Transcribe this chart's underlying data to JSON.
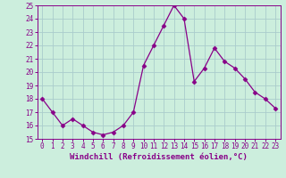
{
  "x": [
    0,
    1,
    2,
    3,
    4,
    5,
    6,
    7,
    8,
    9,
    10,
    11,
    12,
    13,
    14,
    15,
    16,
    17,
    18,
    19,
    20,
    21,
    22,
    23
  ],
  "y": [
    18,
    17,
    16,
    16.5,
    16,
    15.5,
    15.3,
    15.5,
    16,
    17,
    20.5,
    22,
    23.5,
    25,
    24,
    19.3,
    20.3,
    21.8,
    20.8,
    20.3,
    19.5,
    18.5,
    18,
    17.3
  ],
  "line_color": "#880088",
  "marker": "D",
  "marker_size": 2.5,
  "background_color": "#cceedd",
  "grid_color": "#bbdddd",
  "xlabel": "Windchill (Refroidissement éolien,°C)",
  "ylabel": "",
  "xlim": [
    -0.5,
    23.5
  ],
  "ylim": [
    15,
    25
  ],
  "yticks": [
    15,
    16,
    17,
    18,
    19,
    20,
    21,
    22,
    23,
    24,
    25
  ],
  "xticks": [
    0,
    1,
    2,
    3,
    4,
    5,
    6,
    7,
    8,
    9,
    10,
    11,
    12,
    13,
    14,
    15,
    16,
    17,
    18,
    19,
    20,
    21,
    22,
    23
  ],
  "tick_label_fontsize": 5.5,
  "xlabel_fontsize": 6.5,
  "tick_color": "#880088",
  "spine_color": "#880088",
  "linewidth": 0.9
}
